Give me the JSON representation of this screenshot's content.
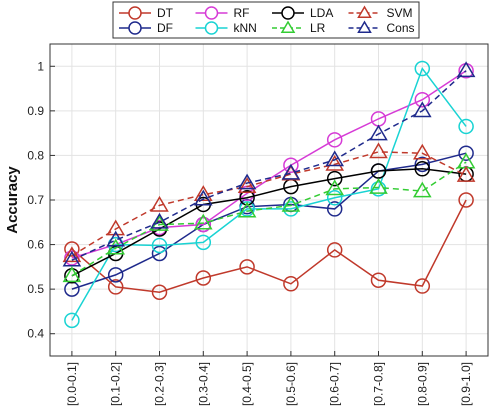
{
  "chart_data": {
    "type": "line",
    "title": "",
    "xlabel": "",
    "ylabel": "Accuracy",
    "ylim": [
      0.35,
      1.05
    ],
    "yticks": [
      0.4,
      0.5,
      0.6,
      0.7,
      0.8,
      0.9,
      1
    ],
    "categories": [
      "[0.0-0.1]",
      "[0.1-0.2]",
      "[0.2-0.3]",
      "[0.3-0.4]",
      "[0.4-0.5]",
      "[0.5-0.6]",
      "[0.6-0.7]",
      "[0.7-0.8]",
      "[0.8-0.9]",
      "[0.9-1.0]"
    ],
    "grid": true,
    "legend_position": "top",
    "series": [
      {
        "name": "DT",
        "color": "#c0392b",
        "line": "solid",
        "marker": "circle",
        "values": [
          0.59,
          0.505,
          0.493,
          0.525,
          0.55,
          0.512,
          0.588,
          0.52,
          0.507,
          0.7
        ]
      },
      {
        "name": "DF",
        "color": "#1f2a8c",
        "line": "solid",
        "marker": "circle",
        "values": [
          0.5,
          0.532,
          0.58,
          0.645,
          0.685,
          0.69,
          0.68,
          0.765,
          0.78,
          0.805
        ]
      },
      {
        "name": "RF",
        "color": "#d63bd6",
        "line": "solid",
        "marker": "circle",
        "values": [
          0.57,
          0.6,
          0.638,
          0.645,
          0.715,
          0.778,
          0.835,
          0.882,
          0.925,
          0.99
        ]
      },
      {
        "name": "kNN",
        "color": "#19d3d3",
        "line": "solid",
        "marker": "circle",
        "values": [
          0.43,
          0.6,
          0.598,
          0.605,
          0.68,
          0.68,
          0.705,
          0.725,
          0.995,
          0.865
        ]
      },
      {
        "name": "LDA",
        "color": "#000000",
        "line": "solid",
        "marker": "circle",
        "values": [
          0.53,
          0.58,
          0.635,
          0.69,
          0.705,
          0.73,
          0.748,
          0.765,
          0.77,
          0.758
        ]
      },
      {
        "name": "LR",
        "color": "#33cc33",
        "line": "dashed",
        "marker": "triangle",
        "values": [
          0.53,
          0.592,
          0.645,
          0.648,
          0.675,
          0.688,
          0.725,
          0.728,
          0.72,
          0.785
        ]
      },
      {
        "name": "SVM",
        "color": "#c0392b",
        "line": "dashed",
        "marker": "triangle",
        "values": [
          0.575,
          0.635,
          0.688,
          0.712,
          0.73,
          0.758,
          0.78,
          0.808,
          0.805,
          0.755
        ]
      },
      {
        "name": "Cons",
        "color": "#1f2a8c",
        "line": "dashed",
        "marker": "triangle",
        "values": [
          0.565,
          0.61,
          0.65,
          0.702,
          0.738,
          0.76,
          0.79,
          0.848,
          0.9,
          0.99
        ]
      }
    ]
  }
}
